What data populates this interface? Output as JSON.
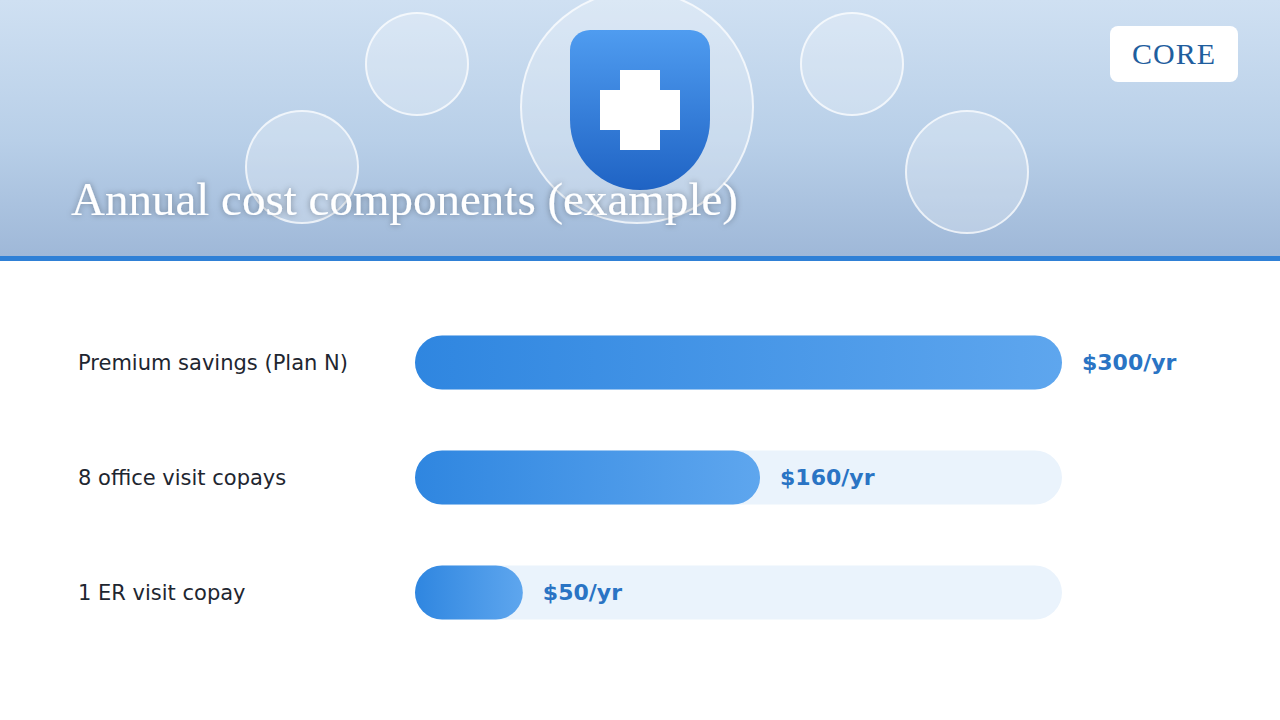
{
  "chart_data": {
    "type": "bar",
    "title": "Annual cost components (example)",
    "annotations": [
      "CORE"
    ],
    "orientation": "horizontal",
    "categories": [
      "Premium savings (Plan N)",
      "8 office visit copays",
      "1 ER visit copay"
    ],
    "values": [
      300,
      160,
      50
    ],
    "value_labels": [
      "$300/yr",
      "$160/yr",
      "$50/yr"
    ],
    "data_labels": true,
    "color": "#2f86e0",
    "xlim": [
      0,
      300
    ],
    "tick_labels": "y",
    "grid": false
  }
}
